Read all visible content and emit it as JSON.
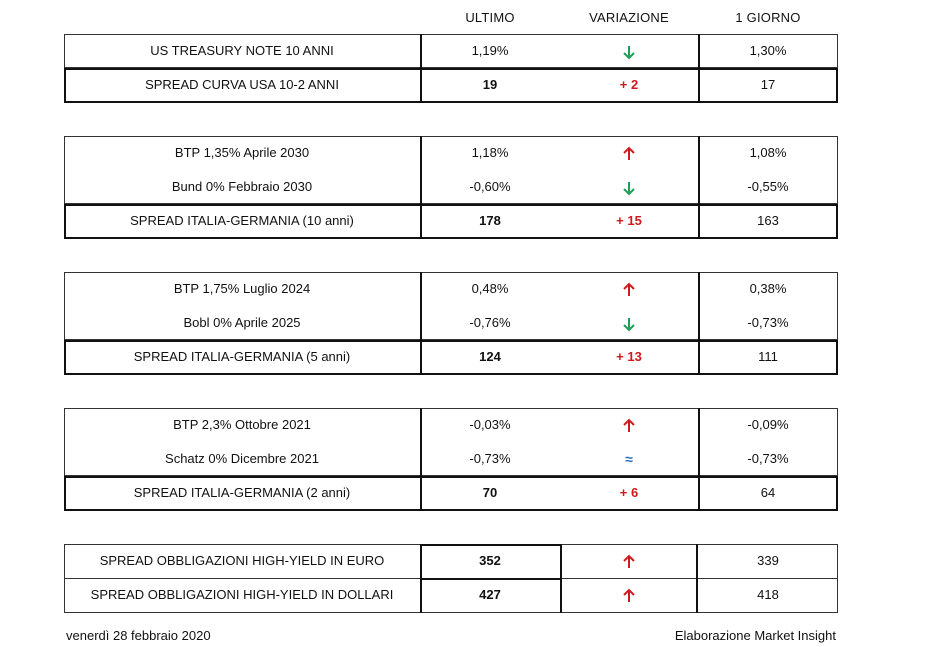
{
  "headers": {
    "ultimo": "ULTIMO",
    "variazione": "VARIAZIONE",
    "giorno": "1 GIORNO"
  },
  "block1": [
    {
      "name": "US TREASURY NOTE 10 ANNI",
      "ultimo": "1,19%",
      "variazione_icon": "arrow-down-icon",
      "giorno": "1,30%"
    },
    {
      "name": "SPREAD CURVA USA 10-2 ANNI",
      "ultimo": "19",
      "variazione": "+ 2",
      "giorno": "17"
    }
  ],
  "block2": [
    {
      "name": "BTP 1,35% Aprile 2030",
      "ultimo": "1,18%",
      "variazione_icon": "arrow-up-icon",
      "giorno": "1,08%"
    },
    {
      "name": "Bund 0% Febbraio 2030",
      "ultimo": "-0,60%",
      "variazione_icon": "arrow-down-icon",
      "giorno": "-0,55%"
    },
    {
      "name": "SPREAD ITALIA-GERMANIA (10 anni)",
      "ultimo": "178",
      "variazione": "+ 15",
      "giorno": "163"
    }
  ],
  "block3": [
    {
      "name": "BTP 1,75% Luglio 2024",
      "ultimo": "0,48%",
      "variazione_icon": "arrow-up-icon",
      "giorno": "0,38%"
    },
    {
      "name": "Bobl 0% Aprile 2025",
      "ultimo": "-0,76%",
      "variazione_icon": "arrow-down-icon",
      "giorno": "-0,73%"
    },
    {
      "name": "SPREAD ITALIA-GERMANIA (5 anni)",
      "ultimo": "124",
      "variazione": "+ 13",
      "giorno": "111"
    }
  ],
  "block4": [
    {
      "name": "BTP 2,3% Ottobre 2021",
      "ultimo": "-0,03%",
      "variazione_icon": "arrow-up-icon",
      "giorno": "-0,09%"
    },
    {
      "name": "Schatz 0% Dicembre 2021",
      "ultimo": "-0,73%",
      "variazione": "≈",
      "giorno": "-0,73%"
    },
    {
      "name": "SPREAD ITALIA-GERMANIA (2 anni)",
      "ultimo": "70",
      "variazione": "+ 6",
      "giorno": "64"
    }
  ],
  "block5": [
    {
      "name": "SPREAD OBBLIGAZIONI HIGH-YIELD IN EURO",
      "ultimo": "352",
      "variazione_icon": "arrow-up-icon",
      "giorno": "339"
    },
    {
      "name": "SPREAD OBBLIGAZIONI HIGH-YIELD IN DOLLARI",
      "ultimo": "427",
      "variazione_icon": "arrow-up-icon",
      "giorno": "418"
    }
  ],
  "footer": {
    "date": "venerdì 28 febbraio 2020",
    "credit": "Elaborazione Market Insight"
  },
  "colors": {
    "up": "#d0191c",
    "down": "#1f9d55",
    "spread_change": "#d0191c",
    "approx": "#2a6fc9"
  }
}
